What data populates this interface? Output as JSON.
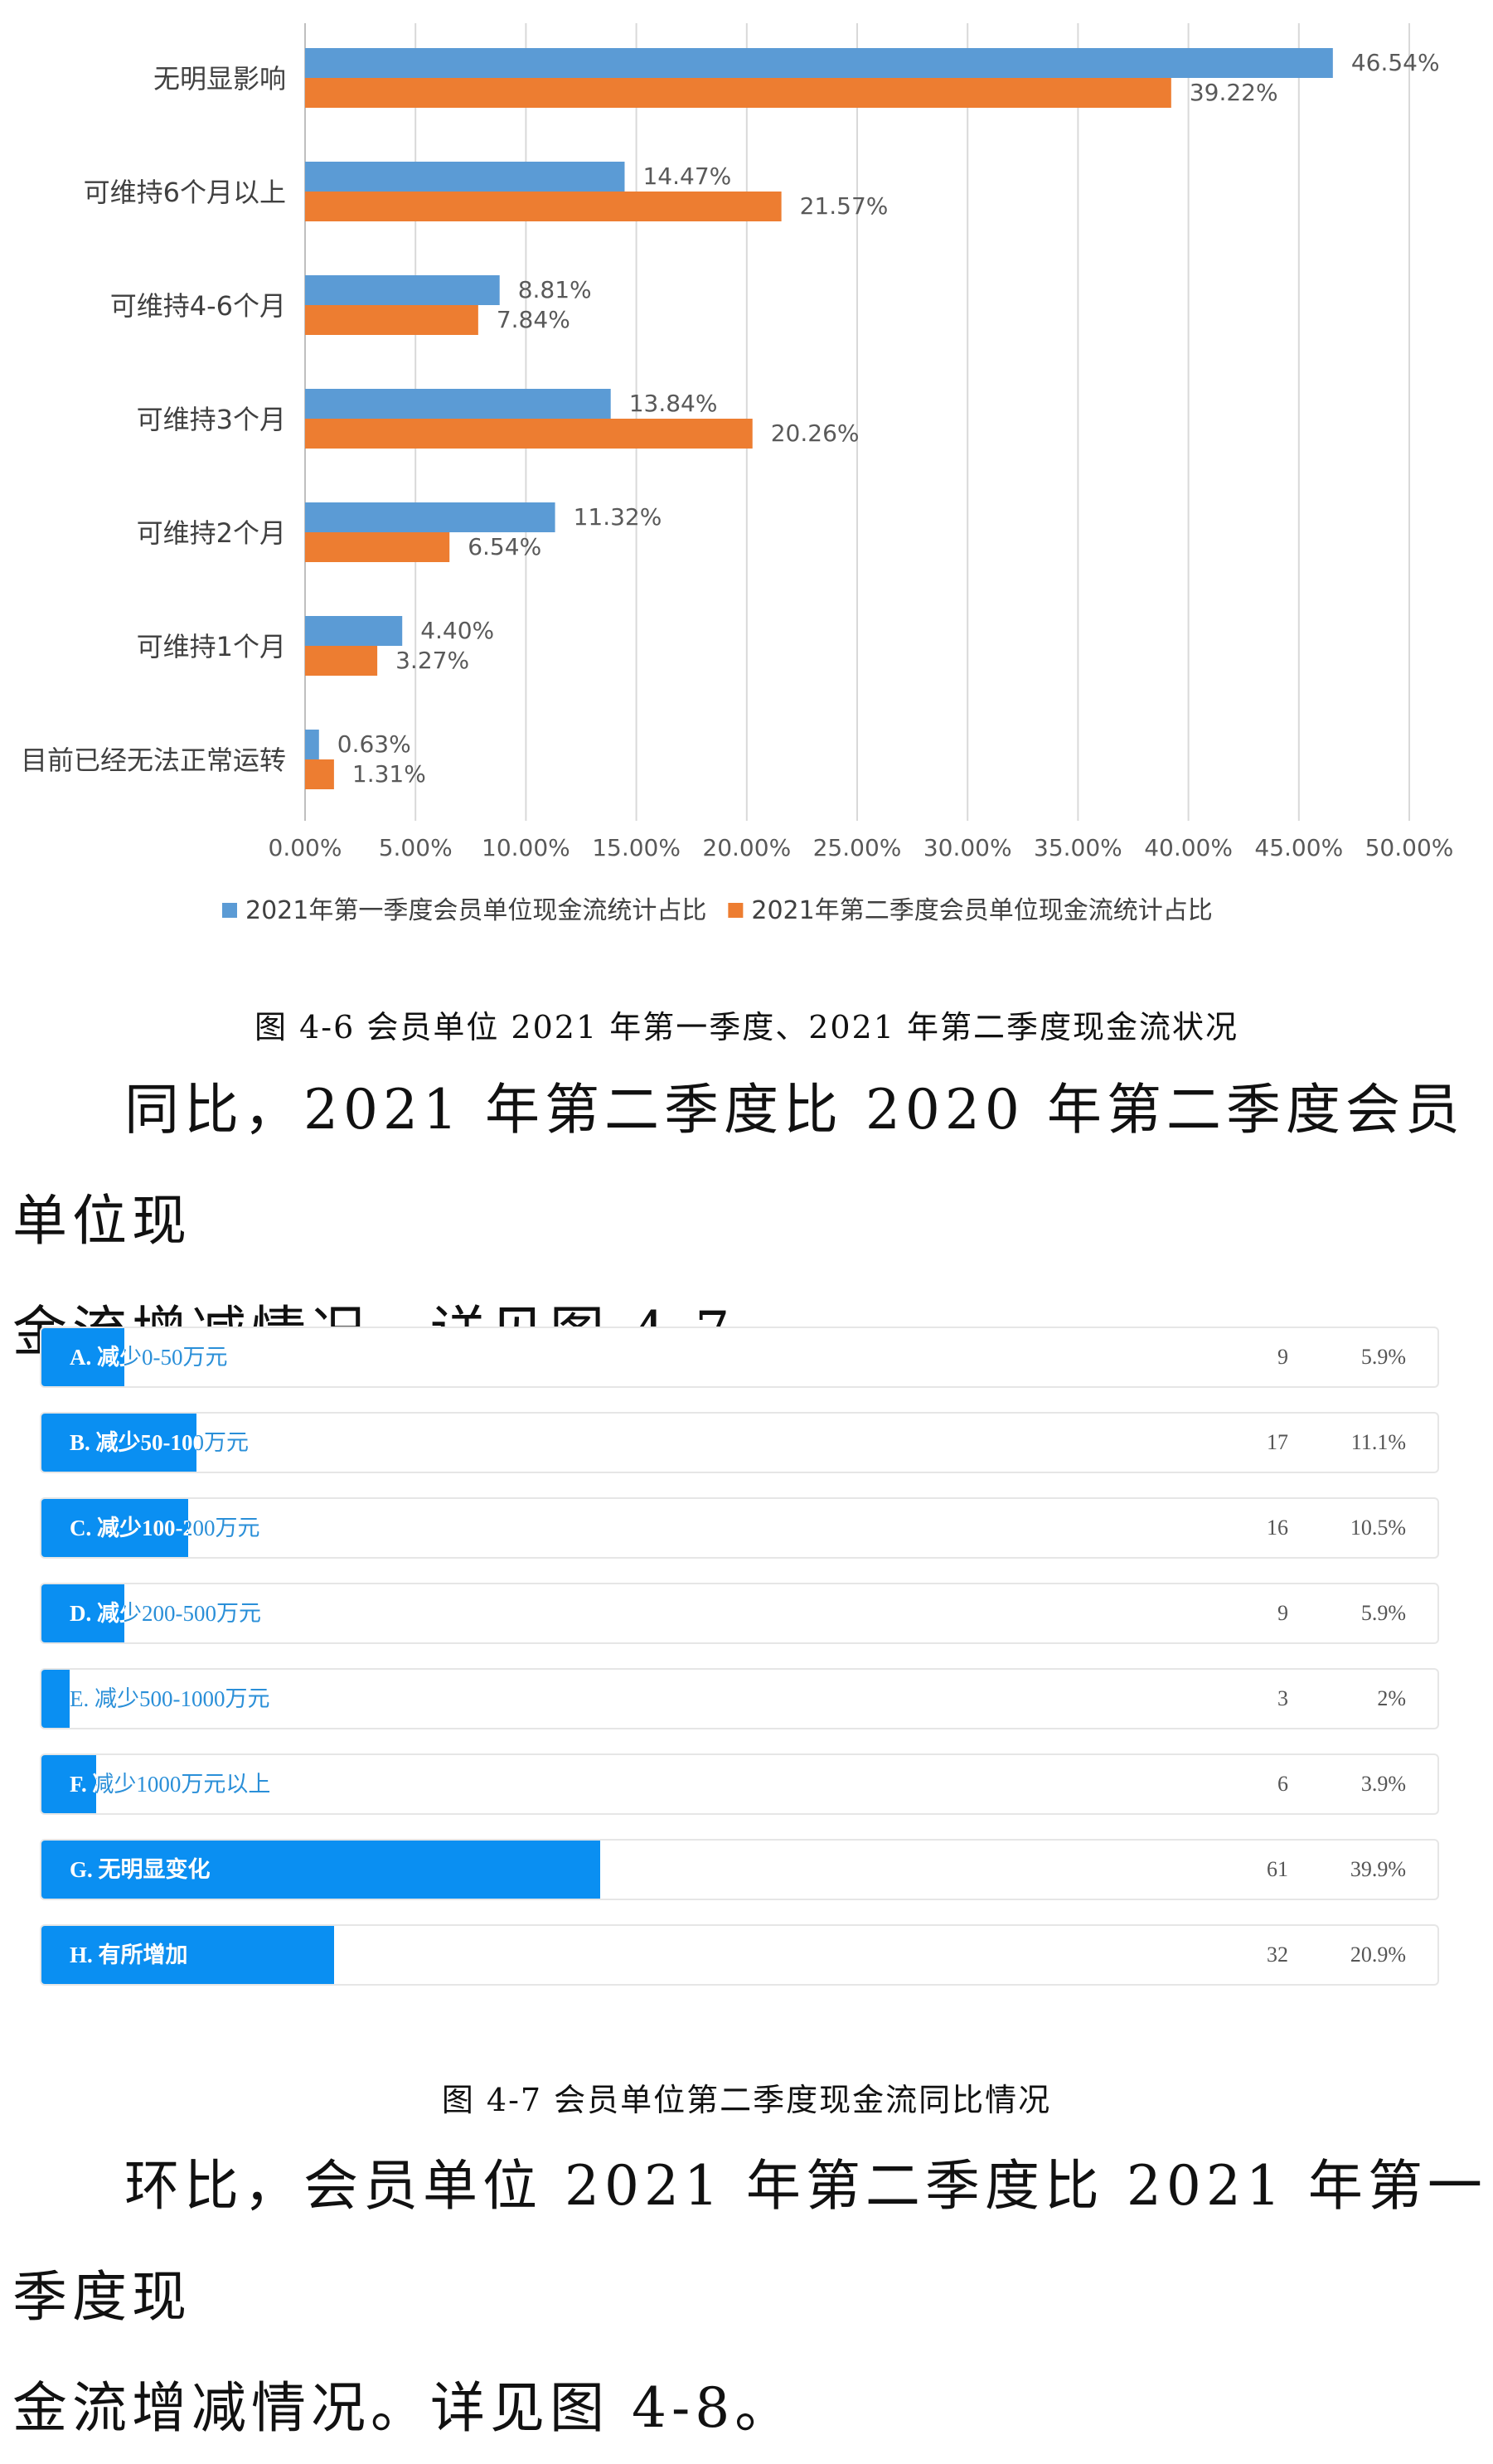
{
  "chart_data": [
    {
      "type": "bar",
      "orientation": "horizontal",
      "categories": [
        "无明显影响",
        "可维持6个月以上",
        "可维持4-6个月",
        "可维持3个月",
        "可维持2个月",
        "可维持1个月",
        "目前已经无法正常运转"
      ],
      "series": [
        {
          "name": "2021年第一季度会员单位现金流统计占比",
          "color": "#5b9bd5",
          "values": [
            46.54,
            14.47,
            8.81,
            13.84,
            11.32,
            4.4,
            0.63
          ],
          "labels": [
            "46.54%",
            "14.47%",
            "8.81%",
            "13.84%",
            "11.32%",
            "4.40%",
            "0.63%"
          ]
        },
        {
          "name": "2021年第二季度会员单位现金流统计占比",
          "color": "#ed7d31",
          "values": [
            39.22,
            21.57,
            7.84,
            20.26,
            6.54,
            3.27,
            1.31
          ],
          "labels": [
            "39.22%",
            "21.57%",
            "7.84%",
            "20.26%",
            "6.54%",
            "3.27%",
            "1.31%"
          ]
        }
      ],
      "xticks": [
        "0.00%",
        "5.00%",
        "10.00%",
        "15.00%",
        "20.00%",
        "25.00%",
        "30.00%",
        "35.00%",
        "40.00%",
        "45.00%",
        "50.00%"
      ],
      "xlim": [
        0,
        50
      ],
      "grid": true,
      "legend": "bottom"
    },
    {
      "type": "bar",
      "orientation": "horizontal",
      "categories": [
        "A. 减少0-50万元",
        "B. 减少50-100万元",
        "C. 减少100-200万元",
        "D. 减少200-500万元",
        "E. 减少500-1000万元",
        "F. 减少1000万元以上",
        "G. 无明显变化",
        "H. 有所增加"
      ],
      "counts": [
        9,
        17,
        16,
        9,
        3,
        6,
        61,
        32
      ],
      "values": [
        5.9,
        11.1,
        10.5,
        5.9,
        2,
        3.9,
        39.9,
        20.9
      ],
      "percent_labels": [
        "5.9%",
        "11.1%",
        "10.5%",
        "5.9%",
        "2%",
        "3.9%",
        "39.9%",
        "20.9%"
      ],
      "fill_color": "#0a8ff2"
    }
  ],
  "captions": {
    "fig46": "图 4-6 会员单位 2021 年第一季度、2021 年第二季度现金流状况",
    "fig47": "图 4-7 会员单位第二季度现金流同比情况"
  },
  "paragraphs": {
    "p1_line1": "同比，2021 年第二季度比 2020 年第二季度会员单位现",
    "p1_line2": "金流增减情况。详见图 4-7。",
    "p2_line1": "环比，会员单位 2021 年第二季度比 2021 年第一季度现",
    "p2_line2": "金流增减情况。详见图 4-8。"
  }
}
